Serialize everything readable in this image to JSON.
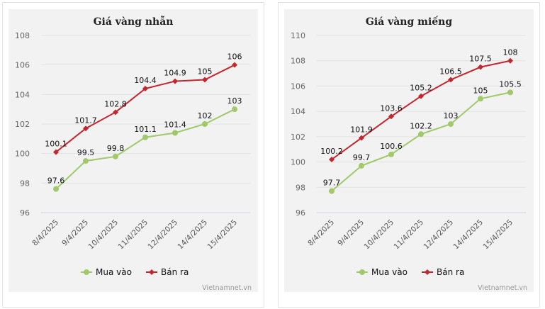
{
  "colors": {
    "mua": "#a0c96a",
    "ban": "#c4262e",
    "grid": "#e2e2e2",
    "axis": "#ccd6eb"
  },
  "chart_data": [
    {
      "type": "line",
      "title": "Giá vàng nhẫn",
      "categories": [
        "8/4/2025",
        "9/4/2025",
        "10/4/2025",
        "11/4/2025",
        "12/4/2025",
        "14/4/2025",
        "15/4/2025"
      ],
      "ylim": [
        96,
        108
      ],
      "yticks": [
        "96",
        "98",
        "100",
        "102",
        "104",
        "106",
        "108"
      ],
      "series": [
        {
          "name": "Mua vào",
          "values": [
            97.6,
            99.5,
            99.8,
            101.1,
            101.4,
            102,
            103
          ]
        },
        {
          "name": "Bán ra",
          "values": [
            100.1,
            101.7,
            102.8,
            104.4,
            104.9,
            105,
            106
          ]
        }
      ],
      "legend": "bottom",
      "credit": "Vietnamnet.vn"
    },
    {
      "type": "line",
      "title": "Giá vàng miếng",
      "categories": [
        "8/4/2025",
        "9/4/2025",
        "10/4/2025",
        "11/4/2025",
        "12/4/2025",
        "14/4/2025",
        "15/4/2025"
      ],
      "ylim": [
        96,
        110
      ],
      "yticks": [
        "96",
        "98",
        "100",
        "102",
        "104",
        "106",
        "108",
        "110"
      ],
      "series": [
        {
          "name": "Mua vào",
          "values": [
            97.7,
            99.7,
            100.6,
            102.2,
            103,
            105,
            105.5
          ]
        },
        {
          "name": "Bán ra",
          "values": [
            100.2,
            101.9,
            103.6,
            105.2,
            106.5,
            107.5,
            108
          ]
        }
      ],
      "legend": "bottom",
      "credit": "Vietnamnet.vn"
    }
  ]
}
